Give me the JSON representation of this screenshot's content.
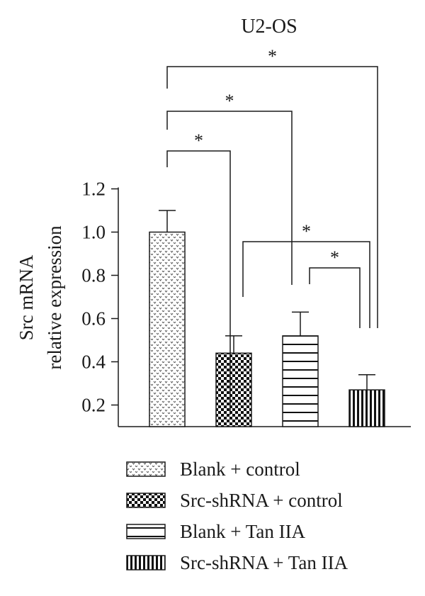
{
  "chart_data": {
    "type": "bar",
    "title": "U2-OS",
    "ylabel": [
      "Src mRNA",
      "relative expression"
    ],
    "xlabel": "",
    "categories": [
      "Blank + control",
      "Src-shRNA + control",
      "Blank + Tan IIA",
      "Src-shRNA + Tan IIA"
    ],
    "values": [
      1.0,
      0.44,
      0.52,
      0.27
    ],
    "errors": [
      0.1,
      0.08,
      0.11,
      0.07
    ],
    "patterns": [
      "dotted",
      "checkered",
      "horizontal-stripes",
      "vertical-stripes"
    ],
    "ylim": [
      0.1,
      1.3
    ],
    "yticks": [
      0.2,
      0.4,
      0.6,
      0.8,
      1.0,
      1.2
    ],
    "ytick_labels": [
      "0.2",
      "0.4",
      "0.6",
      "0.8",
      "1.0",
      "1.2"
    ],
    "significance": [
      {
        "from": 0,
        "to": 1,
        "label": "*"
      },
      {
        "from": 0,
        "to": 2,
        "label": "*"
      },
      {
        "from": 0,
        "to": 3,
        "label": "*"
      },
      {
        "from": 1,
        "to": 3,
        "label": "*"
      },
      {
        "from": 2,
        "to": 3,
        "label": "*"
      }
    ],
    "grid": false,
    "legend_position": "bottom"
  },
  "legend": {
    "items": [
      {
        "label": "Blank + control",
        "pattern": "dotted"
      },
      {
        "label": "Src-shRNA + control",
        "pattern": "checkered"
      },
      {
        "label": "Blank + Tan IIA",
        "pattern": "horizontal-stripes"
      },
      {
        "label": "Src-shRNA + Tan IIA",
        "pattern": "vertical-stripes"
      }
    ]
  }
}
